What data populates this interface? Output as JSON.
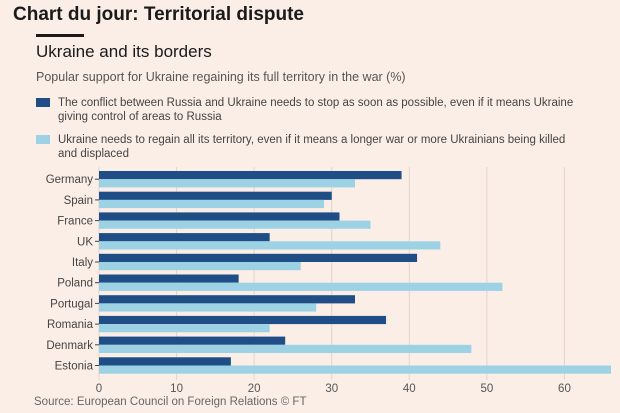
{
  "header": {
    "title": "Chart du jour: Territorial dispute"
  },
  "chart_data": {
    "type": "bar",
    "orientation": "horizontal",
    "title": "Ukraine and its borders",
    "subtitle": "Popular support for Ukraine regaining its full territory in the war (%)",
    "categories": [
      "Germany",
      "Spain",
      "France",
      "UK",
      "Italy",
      "Poland",
      "Portugal",
      "Romania",
      "Denmark",
      "Estonia"
    ],
    "series": [
      {
        "name": "The conflict between Russia and Ukraine needs to stop as soon as possible, even if it means Ukraine giving control of areas to Russia",
        "color": "#1f4e87",
        "values": [
          39,
          30,
          31,
          22,
          41,
          18,
          33,
          37,
          24,
          17
        ]
      },
      {
        "name": "Ukraine needs to regain all its territory, even if it means a longer war or more Ukrainians being killed and displaced",
        "color": "#9dd2e4",
        "values": [
          33,
          29,
          35,
          44,
          26,
          52,
          28,
          22,
          48,
          66
        ]
      }
    ],
    "x_ticks": [
      "0",
      "10",
      "20",
      "30",
      "40",
      "50",
      "60"
    ],
    "xlim": [
      0,
      66
    ],
    "grid": true,
    "legend_position": "top"
  },
  "source": "Source: European Council on Foreign Relations © FT"
}
